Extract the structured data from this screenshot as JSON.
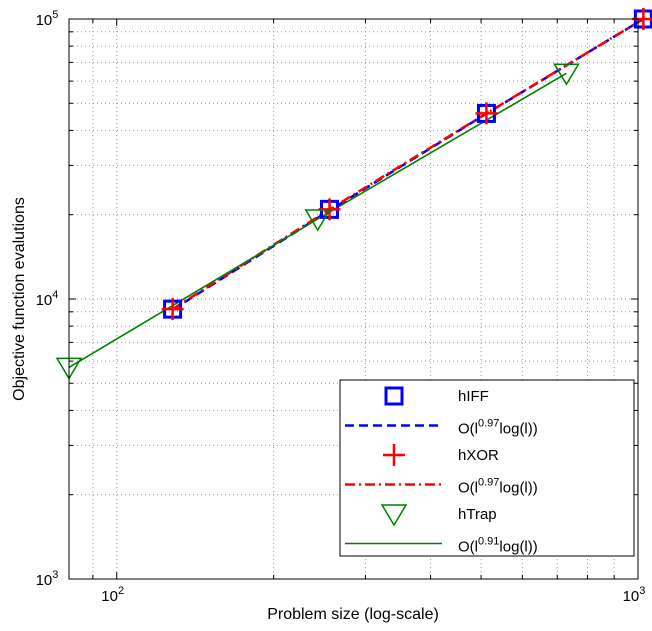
{
  "chart_data": {
    "type": "line",
    "title": "",
    "xlabel": "Problem size (log-scale)",
    "ylabel": "Objective function evalutions",
    "xscale": "log",
    "yscale": "log",
    "xlim": [
      81,
      1000
    ],
    "ylim": [
      1000,
      100000
    ],
    "grid": true,
    "legend_position": "bottom-right",
    "x_ticks": [
      {
        "value": 100,
        "base": "10",
        "exp": "2"
      },
      {
        "value": 1000,
        "base": "10",
        "exp": "3"
      }
    ],
    "y_ticks": [
      {
        "value": 1000,
        "base": "10",
        "exp": "3"
      },
      {
        "value": 10000,
        "base": "10",
        "exp": "4"
      },
      {
        "value": 100000,
        "base": "10",
        "exp": "5"
      }
    ],
    "series": [
      {
        "name": "hIFF",
        "kind": "markers",
        "marker": "square",
        "color": "#0000ff",
        "x": [
          128,
          256,
          512,
          1024
        ],
        "y": [
          9200,
          20900,
          46000,
          100000
        ]
      },
      {
        "name": "O(l^0.97log(l))",
        "legend_base": "O(l",
        "legend_exp": "0.97",
        "legend_tail": "log(l))",
        "kind": "line",
        "style": "dashed",
        "color": "#0000ff",
        "x": [
          128,
          256,
          512,
          1024
        ],
        "y": [
          9150,
          20700,
          45900,
          100000
        ]
      },
      {
        "name": "hXOR",
        "kind": "markers",
        "marker": "plus",
        "color": "#ff0000",
        "x": [
          128,
          256,
          512,
          1024
        ],
        "y": [
          9200,
          20900,
          46000,
          100000
        ]
      },
      {
        "name": "O(l^0.97log(l))",
        "legend_base": "O(l",
        "legend_exp": "0.97",
        "legend_tail": "log(l))",
        "kind": "line",
        "style": "dashdot",
        "color": "#ff0000",
        "x": [
          128,
          256,
          512,
          1024
        ],
        "y": [
          9200,
          20900,
          46000,
          100000
        ]
      },
      {
        "name": "hTrap",
        "kind": "markers",
        "marker": "triangle-down",
        "color": "#008000",
        "x": [
          81,
          243,
          729
        ],
        "y": [
          5700,
          19300,
          64000
        ]
      },
      {
        "name": "O(l^0.91log(l))",
        "legend_base": "O(l",
        "legend_exp": "0.91",
        "legend_tail": "log(l))",
        "kind": "line",
        "style": "solid",
        "color": "#008000",
        "x": [
          81,
          243,
          729
        ],
        "y": [
          5700,
          19300,
          64000
        ]
      }
    ]
  }
}
